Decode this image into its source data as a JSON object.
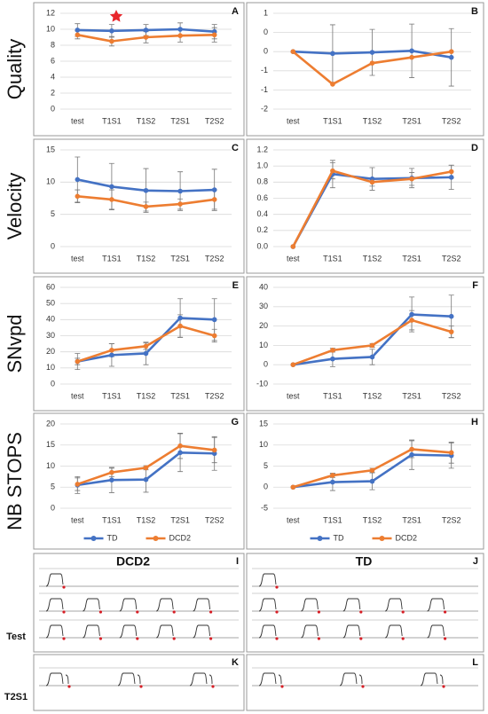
{
  "chart_data": [
    {
      "type": "line",
      "panel": "A",
      "categories": [
        "test",
        "T1S1",
        "T1S2",
        "T2S1",
        "T2S2"
      ],
      "ylim": [
        0,
        12
      ],
      "yticks": [
        0,
        2,
        4,
        6,
        8,
        10,
        12
      ],
      "grid": true,
      "series": [
        {
          "name": "TD",
          "color": "#4472c4",
          "values": [
            9.9,
            9.8,
            9.9,
            10.0,
            9.7
          ],
          "errors": [
            0.8,
            0.8,
            0.7,
            0.8,
            0.9
          ]
        },
        {
          "name": "DCD2",
          "color": "#ed7d31",
          "values": [
            9.3,
            8.5,
            9.0,
            9.2,
            9.3
          ],
          "errors": [
            0.5,
            0.6,
            0.7,
            0.8,
            0.9
          ]
        }
      ]
    },
    {
      "type": "line",
      "panel": "B",
      "categories": [
        "test",
        "T1S1",
        "T1S2",
        "T2S1",
        "T2S2"
      ],
      "ylim": [
        -1.5,
        1
      ],
      "grid": true,
      "yticks": [
        {
          "value": 1,
          "label": "1"
        },
        {
          "value": 0.5,
          "label": "0"
        },
        0,
        {
          "value": -0.5,
          "label": "-1"
        },
        {
          "value": -1,
          "label": "-1"
        },
        {
          "value": -1.5,
          "label": "-2"
        }
      ],
      "series": [
        {
          "name": "TD",
          "color": "#4472c4",
          "values": [
            0,
            -0.05,
            -0.02,
            0.02,
            -0.15
          ],
          "errors": [
            0,
            0.75,
            0.6,
            0.7,
            0.75
          ]
        },
        {
          "name": "DCD2",
          "color": "#ed7d31",
          "values": [
            0,
            -0.85,
            -0.3,
            -0.15,
            0
          ],
          "errors": [
            0,
            0,
            0,
            0,
            0
          ]
        }
      ]
    },
    {
      "type": "line",
      "panel": "C",
      "categories": [
        "test",
        "T1S1",
        "T1S2",
        "T2S1",
        "T2S2"
      ],
      "ylim": [
        0,
        15
      ],
      "yticks": [
        0,
        5,
        10,
        15
      ],
      "grid": true,
      "series": [
        {
          "name": "TD",
          "color": "#4472c4",
          "values": [
            10.4,
            9.3,
            8.7,
            8.6,
            8.8
          ],
          "errors": [
            3.5,
            3.6,
            3.4,
            3.0,
            3.2
          ]
        },
        {
          "name": "DCD2",
          "color": "#ed7d31",
          "values": [
            7.8,
            7.3,
            6.2,
            6.6,
            7.3
          ],
          "errors": [
            1.0,
            1.5,
            0.7,
            0.8,
            1.5
          ]
        }
      ]
    },
    {
      "type": "line",
      "panel": "D",
      "categories": [
        "test",
        "T1S1",
        "T1S2",
        "T2S1",
        "T2S2"
      ],
      "ylim": [
        0,
        1.2
      ],
      "grid": true,
      "yticks": [
        {
          "value": 0,
          "label": "0.0"
        },
        0.2,
        0.4,
        0.6,
        0.8,
        {
          "value": 1,
          "label": "1.0"
        },
        1.2
      ],
      "series": [
        {
          "name": "TD",
          "color": "#4472c4",
          "values": [
            0,
            0.9,
            0.84,
            0.85,
            0.86
          ],
          "errors": [
            0,
            0.17,
            0.14,
            0.12,
            0.15
          ]
        },
        {
          "name": "DCD2",
          "color": "#ed7d31",
          "values": [
            0,
            0.94,
            0.8,
            0.84,
            0.93
          ],
          "errors": [
            0,
            0.1,
            0.05,
            0.08,
            0.08
          ]
        }
      ]
    },
    {
      "type": "line",
      "panel": "E",
      "categories": [
        "test",
        "T1S1",
        "T1S2",
        "T2S1",
        "T2S2"
      ],
      "ylim": [
        0,
        60
      ],
      "yticks": [
        0,
        10,
        20,
        30,
        40,
        50,
        60
      ],
      "grid": true,
      "series": [
        {
          "name": "TD",
          "color": "#4472c4",
          "values": [
            14,
            18,
            19,
            41,
            40
          ],
          "errors": [
            5,
            7,
            7,
            12,
            13
          ]
        },
        {
          "name": "DCD2",
          "color": "#ed7d31",
          "values": [
            14,
            21,
            23.5,
            36,
            30
          ],
          "errors": [
            2,
            4,
            2,
            7,
            4
          ]
        }
      ]
    },
    {
      "type": "line",
      "panel": "F",
      "categories": [
        "test",
        "T1S1",
        "T1S2",
        "T2S1",
        "T2S2"
      ],
      "ylim": [
        -10,
        40
      ],
      "yticks": [
        -10,
        0,
        10,
        20,
        30,
        40
      ],
      "grid": true,
      "series": [
        {
          "name": "TD",
          "color": "#4472c4",
          "values": [
            0,
            3,
            4,
            26,
            25
          ],
          "errors": [
            0,
            4,
            4,
            9,
            11
          ]
        },
        {
          "name": "DCD2",
          "color": "#ed7d31",
          "values": [
            0,
            7.5,
            10,
            23,
            17
          ],
          "errors": [
            0,
            1,
            1,
            5,
            3
          ]
        }
      ]
    },
    {
      "type": "line",
      "panel": "G",
      "categories": [
        "test",
        "T1S1",
        "T1S2",
        "T2S1",
        "T2S2"
      ],
      "ylim": [
        0,
        20
      ],
      "yticks": [
        0,
        5,
        10,
        15,
        20
      ],
      "grid": true,
      "legend": "bottom",
      "series": [
        {
          "name": "TD",
          "color": "#4472c4",
          "values": [
            5.5,
            6.7,
            6.8,
            13.2,
            13
          ],
          "errors": [
            2,
            3,
            3,
            4.5,
            4
          ]
        },
        {
          "name": "DCD2",
          "color": "#ed7d31",
          "values": [
            5.7,
            8.5,
            9.6,
            14.8,
            13.8
          ],
          "errors": [
            1.5,
            1,
            0.5,
            3,
            3
          ]
        }
      ]
    },
    {
      "type": "line",
      "panel": "H",
      "categories": [
        "test",
        "T1S1",
        "T1S2",
        "T2S1",
        "T2S2"
      ],
      "ylim": [
        -5,
        15
      ],
      "yticks": [
        -5,
        0,
        5,
        10,
        15
      ],
      "grid": true,
      "legend": "bottom",
      "series": [
        {
          "name": "TD",
          "color": "#4472c4",
          "values": [
            0,
            1.2,
            1.4,
            7.7,
            7.5
          ],
          "errors": [
            0,
            2,
            2,
            3.5,
            3
          ]
        },
        {
          "name": "DCD2",
          "color": "#ed7d31",
          "values": [
            0,
            2.8,
            4,
            9,
            8.2
          ],
          "errors": [
            0,
            0.5,
            0.5,
            2,
            2.5
          ]
        }
      ]
    }
  ],
  "row_labels": [
    "Quality",
    "Velocity",
    "SNvpd",
    "NB STOPS"
  ],
  "handwriting": {
    "panels": [
      "I",
      "J",
      "K",
      "L"
    ],
    "groups": [
      "DCD2",
      "TD"
    ],
    "sessions": [
      "Test",
      "T2S1"
    ]
  }
}
